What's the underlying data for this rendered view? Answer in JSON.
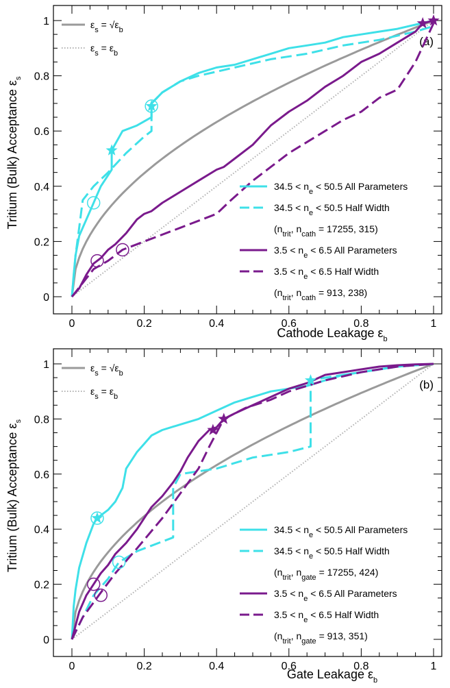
{
  "colors": {
    "cyan": "#3ee0e8",
    "purple": "#7a1a8c",
    "gray": "#9a9a9a",
    "dotted": "#b0b0b0"
  },
  "chart_data": [
    {
      "type": "line",
      "panel_label": "(a)",
      "xlabel": "Cathode Leakage ε",
      "xlabel_sub": "b",
      "ylabel": "Tritium (Bulk) Acceptance ε",
      "ylabel_sub": "s",
      "xlim": [
        0,
        1
      ],
      "ylim": [
        0,
        1
      ],
      "x_ticks": [
        "0",
        "0.2",
        "0.4",
        "0.6",
        "0.8",
        "1"
      ],
      "y_ticks": [
        "0",
        "0.2",
        "0.4",
        "0.6",
        "0.8",
        "1"
      ],
      "ref_legend": [
        {
          "text": "ε",
          "sub": "s",
          "rest": " = √ε",
          "sub2": "b",
          "style": "solid-gray"
        },
        {
          "text": "ε",
          "sub": "s",
          "rest": " = ε",
          "sub2": "b",
          "style": "dotted-gray"
        }
      ],
      "legend": [
        {
          "label": "34.5 < n",
          "sub": "e",
          "label2": " < 50.5 All Parameters",
          "color": "cyan",
          "dash": "solid"
        },
        {
          "label": "34.5 < n",
          "sub": "e",
          "label2": " < 50.5 Half Width",
          "color": "cyan",
          "dash": "dashed"
        },
        {
          "note": "(n",
          "sub1": "trit",
          "mid": ", n",
          "sub2": "cath",
          "end": " = 17255, 315)"
        },
        {
          "label": "3.5 < n",
          "sub": "e",
          "label2": " < 6.5 All Parameters",
          "color": "purple",
          "dash": "solid"
        },
        {
          "label": "3.5 < n",
          "sub": "e",
          "label2": " < 6.5 Half Width",
          "color": "purple",
          "dash": "dashed"
        },
        {
          "note": "(n",
          "sub1": "trit",
          "mid": ", n",
          "sub2": "cath",
          "end": " = 913, 238)"
        }
      ],
      "series": [
        {
          "color": "cyan",
          "dash": "solid",
          "x": [
            0,
            0.005,
            0.01,
            0.02,
            0.03,
            0.05,
            0.08,
            0.1,
            0.11,
            0.11,
            0.14,
            0.18,
            0.22,
            0.22,
            0.25,
            0.3,
            0.35,
            0.4,
            0.45,
            0.5,
            0.55,
            0.6,
            0.65,
            0.7,
            0.75,
            0.8,
            0.85,
            0.9,
            0.95,
            1.0
          ],
          "y": [
            0,
            0.08,
            0.15,
            0.22,
            0.25,
            0.31,
            0.4,
            0.44,
            0.46,
            0.53,
            0.6,
            0.62,
            0.65,
            0.7,
            0.74,
            0.78,
            0.81,
            0.83,
            0.84,
            0.86,
            0.88,
            0.9,
            0.91,
            0.92,
            0.94,
            0.95,
            0.96,
            0.97,
            0.985,
            1.0
          ]
        },
        {
          "color": "cyan",
          "dash": "dashed",
          "x": [
            0,
            0.01,
            0.02,
            0.03,
            0.06,
            0.1,
            0.15,
            0.2,
            0.22,
            0.22,
            0.25,
            0.3,
            0.35,
            0.45,
            0.55,
            0.65,
            0.75,
            0.85,
            0.95,
            1.0
          ],
          "y": [
            0,
            0.15,
            0.25,
            0.35,
            0.4,
            0.45,
            0.52,
            0.58,
            0.6,
            0.7,
            0.74,
            0.78,
            0.8,
            0.83,
            0.86,
            0.88,
            0.91,
            0.93,
            0.96,
            0.98
          ]
        },
        {
          "color": "purple",
          "dash": "solid",
          "x": [
            0,
            0.02,
            0.04,
            0.06,
            0.08,
            0.1,
            0.12,
            0.15,
            0.18,
            0.2,
            0.22,
            0.25,
            0.3,
            0.35,
            0.4,
            0.42,
            0.45,
            0.5,
            0.55,
            0.6,
            0.65,
            0.7,
            0.75,
            0.8,
            0.85,
            0.9,
            0.95,
            0.97,
            1.0
          ],
          "y": [
            0,
            0.03,
            0.08,
            0.12,
            0.14,
            0.17,
            0.19,
            0.23,
            0.28,
            0.3,
            0.31,
            0.34,
            0.38,
            0.42,
            0.46,
            0.47,
            0.5,
            0.55,
            0.62,
            0.67,
            0.71,
            0.76,
            0.8,
            0.85,
            0.88,
            0.92,
            0.96,
            0.99,
            1.0
          ]
        },
        {
          "color": "purple",
          "dash": "dashed",
          "x": [
            0,
            0.03,
            0.06,
            0.1,
            0.14,
            0.2,
            0.3,
            0.4,
            0.44,
            0.5,
            0.55,
            0.6,
            0.65,
            0.7,
            0.75,
            0.8,
            0.85,
            0.9,
            0.95,
            1.0
          ],
          "y": [
            0,
            0.05,
            0.1,
            0.13,
            0.17,
            0.2,
            0.25,
            0.3,
            0.35,
            0.42,
            0.47,
            0.52,
            0.56,
            0.6,
            0.64,
            0.67,
            0.72,
            0.75,
            0.85,
            0.99
          ]
        }
      ],
      "markers": [
        {
          "shape": "star",
          "color": "cyan",
          "x": 0.11,
          "y": 0.53
        },
        {
          "shape": "star",
          "color": "cyan",
          "x": 0.22,
          "y": 0.69
        },
        {
          "shape": "circle",
          "color": "cyan",
          "x": 0.22,
          "y": 0.69
        },
        {
          "shape": "circle",
          "color": "cyan",
          "x": 0.06,
          "y": 0.34
        },
        {
          "shape": "circle",
          "color": "purple",
          "x": 0.07,
          "y": 0.13
        },
        {
          "shape": "circle",
          "color": "purple",
          "x": 0.14,
          "y": 0.17
        },
        {
          "shape": "star",
          "color": "purple",
          "x": 0.97,
          "y": 0.99
        },
        {
          "shape": "star",
          "color": "purple",
          "x": 1.0,
          "y": 1.0
        }
      ]
    },
    {
      "type": "line",
      "panel_label": "(b)",
      "xlabel": "Gate Leakage ε",
      "xlabel_sub": "b",
      "ylabel": "Tritium (Bulk) Acceptance ε",
      "ylabel_sub": "s",
      "xlim": [
        0,
        1
      ],
      "ylim": [
        0,
        1
      ],
      "x_ticks": [
        "0",
        "0.2",
        "0.4",
        "0.6",
        "0.8",
        "1"
      ],
      "y_ticks": [
        "0",
        "0.2",
        "0.4",
        "0.6",
        "0.8",
        "1"
      ],
      "ref_legend": [
        {
          "text": "ε",
          "sub": "s",
          "rest": " = √ε",
          "sub2": "b",
          "style": "solid-gray"
        },
        {
          "text": "ε",
          "sub": "s",
          "rest": " = ε",
          "sub2": "b",
          "style": "dotted-gray"
        }
      ],
      "legend": [
        {
          "label": "34.5 < n",
          "sub": "e",
          "label2": " < 50.5 All Parameters",
          "color": "cyan",
          "dash": "solid"
        },
        {
          "label": "34.5 < n",
          "sub": "e",
          "label2": " < 50.5 Half Width",
          "color": "cyan",
          "dash": "dashed"
        },
        {
          "note": "(n",
          "sub1": "trit",
          "mid": ", n",
          "sub2": "gate",
          "end": " = 17255, 424)"
        },
        {
          "label": "3.5 < n",
          "sub": "e",
          "label2": " < 6.5 All Parameters",
          "color": "purple",
          "dash": "solid"
        },
        {
          "label": "3.5 < n",
          "sub": "e",
          "label2": " < 6.5 Half Width",
          "color": "purple",
          "dash": "dashed"
        },
        {
          "note": "(n",
          "sub1": "trit",
          "mid": ", n",
          "sub2": "gate",
          "end": " = 913, 351)"
        }
      ],
      "series": [
        {
          "color": "cyan",
          "dash": "solid",
          "x": [
            0,
            0.005,
            0.01,
            0.02,
            0.04,
            0.06,
            0.07,
            0.08,
            0.1,
            0.12,
            0.14,
            0.15,
            0.16,
            0.18,
            0.2,
            0.22,
            0.25,
            0.3,
            0.35,
            0.4,
            0.45,
            0.5,
            0.55,
            0.6,
            0.65,
            0.7,
            0.75,
            0.8,
            0.85,
            0.9,
            0.95,
            1.0
          ],
          "y": [
            0,
            0.12,
            0.18,
            0.26,
            0.35,
            0.42,
            0.44,
            0.45,
            0.47,
            0.5,
            0.55,
            0.62,
            0.64,
            0.68,
            0.71,
            0.74,
            0.76,
            0.78,
            0.8,
            0.83,
            0.86,
            0.88,
            0.9,
            0.91,
            0.92,
            0.94,
            0.96,
            0.97,
            0.98,
            0.99,
            0.995,
            1.0
          ]
        },
        {
          "color": "cyan",
          "dash": "dashed",
          "x": [
            0,
            0.03,
            0.06,
            0.1,
            0.13,
            0.18,
            0.22,
            0.28,
            0.28,
            0.3,
            0.35,
            0.4,
            0.45,
            0.5,
            0.55,
            0.6,
            0.66,
            0.66,
            0.7,
            0.8,
            0.9,
            1.0
          ],
          "y": [
            0,
            0.08,
            0.16,
            0.22,
            0.28,
            0.32,
            0.34,
            0.37,
            0.55,
            0.6,
            0.61,
            0.62,
            0.64,
            0.66,
            0.67,
            0.68,
            0.7,
            0.94,
            0.95,
            0.97,
            0.99,
            1.0
          ]
        },
        {
          "color": "purple",
          "dash": "solid",
          "x": [
            0,
            0.02,
            0.04,
            0.06,
            0.08,
            0.1,
            0.12,
            0.15,
            0.18,
            0.2,
            0.22,
            0.25,
            0.28,
            0.3,
            0.32,
            0.35,
            0.38,
            0.4,
            0.42,
            0.45,
            0.5,
            0.55,
            0.6,
            0.65,
            0.7,
            0.75,
            0.8,
            0.85,
            0.9,
            0.95,
            1.0
          ],
          "y": [
            0,
            0.1,
            0.16,
            0.2,
            0.24,
            0.27,
            0.31,
            0.35,
            0.4,
            0.44,
            0.48,
            0.52,
            0.57,
            0.61,
            0.66,
            0.72,
            0.76,
            0.77,
            0.8,
            0.82,
            0.85,
            0.88,
            0.91,
            0.93,
            0.96,
            0.97,
            0.98,
            0.99,
            0.995,
            0.998,
            1.0
          ]
        },
        {
          "color": "purple",
          "dash": "dashed",
          "x": [
            0,
            0.03,
            0.08,
            0.12,
            0.18,
            0.25,
            0.3,
            0.35,
            0.38,
            0.42,
            0.48,
            0.55,
            0.6,
            0.65,
            0.7,
            0.8,
            0.9,
            1.0
          ],
          "y": [
            0,
            0.08,
            0.17,
            0.24,
            0.33,
            0.44,
            0.53,
            0.62,
            0.7,
            0.8,
            0.84,
            0.87,
            0.9,
            0.92,
            0.94,
            0.97,
            0.99,
            1.0
          ]
        }
      ],
      "markers": [
        {
          "shape": "star",
          "color": "cyan",
          "x": 0.07,
          "y": 0.44
        },
        {
          "shape": "circle",
          "color": "cyan",
          "x": 0.07,
          "y": 0.44
        },
        {
          "shape": "circle",
          "color": "cyan",
          "x": 0.13,
          "y": 0.28
        },
        {
          "shape": "star",
          "color": "cyan",
          "x": 0.66,
          "y": 0.94
        },
        {
          "shape": "circle",
          "color": "purple",
          "x": 0.06,
          "y": 0.2
        },
        {
          "shape": "circle",
          "color": "purple",
          "x": 0.08,
          "y": 0.16
        },
        {
          "shape": "star",
          "color": "purple",
          "x": 0.39,
          "y": 0.76
        },
        {
          "shape": "star",
          "color": "purple",
          "x": 0.42,
          "y": 0.8
        }
      ]
    }
  ]
}
